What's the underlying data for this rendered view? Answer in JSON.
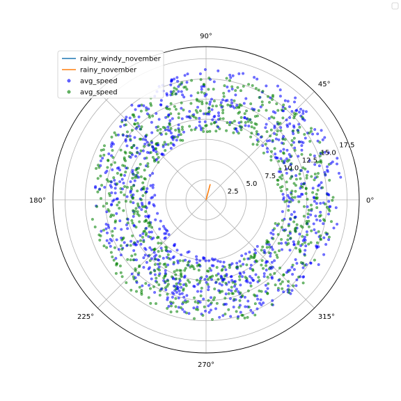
{
  "chart_data": {
    "type": "scatter",
    "projection": "polar",
    "angle_unit": "degrees",
    "theta_ticks": [
      0,
      45,
      90,
      135,
      180,
      225,
      270,
      315
    ],
    "theta_labels": [
      "0°",
      "45°",
      "90°",
      "",
      "180°",
      "225°",
      "270°",
      "315°"
    ],
    "r_ticks": [
      2.5,
      5.0,
      7.5,
      10.0,
      12.5,
      15.0,
      17.5
    ],
    "r_labels": [
      "2.5",
      "5.0",
      "7.5",
      "10.0",
      "12.5",
      "15.0",
      "17.5"
    ],
    "rlim": [
      0,
      19
    ],
    "grid": true,
    "legend_placement": "upper-left",
    "series": [
      {
        "name": "rainy_windy_november",
        "kind": "line",
        "color": "#1f77b4",
        "theta": [],
        "r": []
      },
      {
        "name": "rainy_november",
        "kind": "line",
        "color": "#ff7f0e",
        "theta": [
          75.0,
          75.0
        ],
        "r": [
          0.0,
          2.0
        ]
      },
      {
        "name": "avg_speed",
        "kind": "scatter",
        "color": "#0000ff",
        "ring_r": [
          8.5,
          16.0
        ],
        "points": 850
      },
      {
        "name": "avg_speed",
        "kind": "scatter",
        "color": "#008000",
        "ring_r": [
          8.5,
          15.5
        ],
        "points": 850
      }
    ],
    "corner_legend": {
      "placement": "top-right",
      "entries": []
    }
  }
}
